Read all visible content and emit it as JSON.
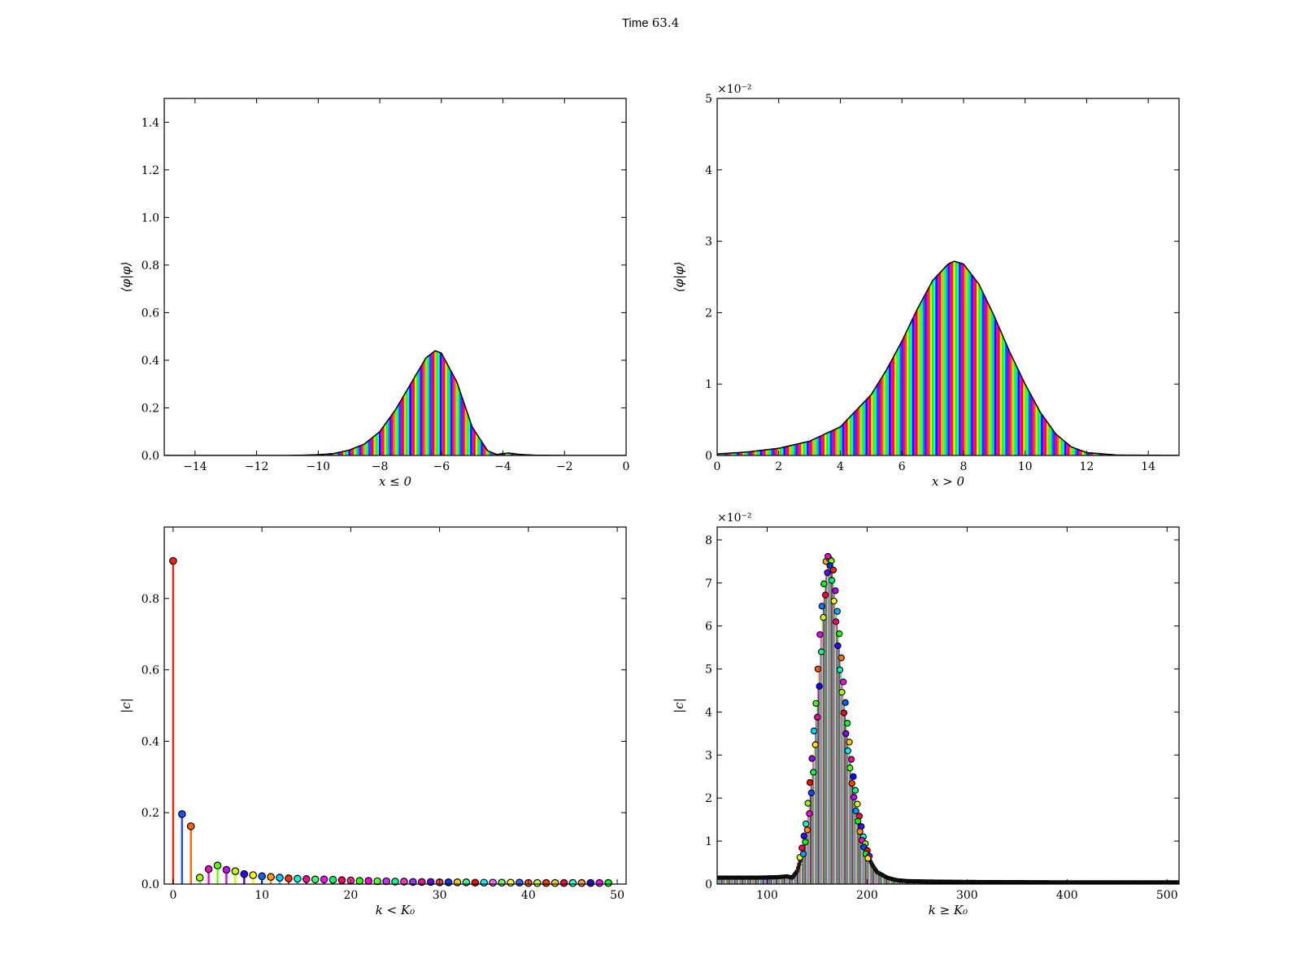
{
  "figure": {
    "title_label": "Time",
    "title_value": "63.4"
  },
  "chart_data": [
    {
      "id": "top-left",
      "type": "area",
      "fill_style": "phase-rainbow",
      "ylabel": "⟨φ|φ⟩",
      "xlabel": "x ≤ 0",
      "xlim": [
        -15,
        0
      ],
      "ylim": [
        0,
        1.5
      ],
      "xticks": [
        -14,
        -12,
        -10,
        -8,
        -6,
        -4,
        -2,
        0
      ],
      "xtick_labels": [
        "−14",
        "−12",
        "−10",
        "−8",
        "−6",
        "−4",
        "−2",
        "0"
      ],
      "yticks": [
        0,
        0.2,
        0.4,
        0.6,
        0.8,
        1.0,
        1.2,
        1.4
      ],
      "ytick_labels": [
        "0.0",
        "0.2",
        "0.4",
        "0.6",
        "0.8",
        "1.0",
        "1.2",
        "1.4"
      ],
      "x": [
        -15,
        -11,
        -10.5,
        -10,
        -9.5,
        -9,
        -8.5,
        -8,
        -7.5,
        -7,
        -6.5,
        -6.2,
        -6,
        -5.5,
        -5,
        -4.5,
        -4.2,
        -4,
        -3.8,
        -3.5,
        -3,
        -2,
        0
      ],
      "y": [
        0,
        0,
        0.001,
        0.003,
        0.008,
        0.022,
        0.048,
        0.1,
        0.19,
        0.3,
        0.41,
        0.44,
        0.43,
        0.31,
        0.12,
        0.02,
        0.004,
        0.008,
        0.01,
        0.005,
        0.001,
        0,
        0
      ],
      "stripe_period": 0.33,
      "grid": false
    },
    {
      "id": "top-right",
      "type": "area",
      "fill_style": "phase-rainbow",
      "ylabel": "⟨φ|φ⟩",
      "xlabel": "x > 0",
      "scale_exponent": "×10⁻²",
      "xlim": [
        0,
        15
      ],
      "ylim": [
        0,
        5
      ],
      "xticks": [
        0,
        2,
        4,
        6,
        8,
        10,
        12,
        14
      ],
      "xtick_labels": [
        "0",
        "2",
        "4",
        "6",
        "8",
        "10",
        "12",
        "14"
      ],
      "yticks": [
        0,
        1,
        2,
        3,
        4,
        5
      ],
      "ytick_labels": [
        "0",
        "1",
        "2",
        "3",
        "4",
        "5"
      ],
      "x": [
        0,
        1,
        2,
        3,
        4,
        5,
        5.5,
        6,
        6.5,
        7,
        7.5,
        7.7,
        8,
        8.5,
        9,
        9.5,
        10,
        10.5,
        11,
        11.5,
        12,
        13,
        15
      ],
      "y": [
        0.02,
        0.05,
        0.1,
        0.2,
        0.4,
        0.85,
        1.2,
        1.6,
        2.05,
        2.45,
        2.68,
        2.72,
        2.68,
        2.4,
        1.95,
        1.45,
        1.0,
        0.6,
        0.3,
        0.12,
        0.04,
        0.005,
        0
      ],
      "stripe_period": 0.38,
      "grid": false
    },
    {
      "id": "bottom-left",
      "type": "scatter",
      "mark_style": "stem",
      "ylabel": "|c|",
      "xlabel": "k < K₀",
      "xlim": [
        -1,
        51
      ],
      "ylim": [
        0,
        1.0
      ],
      "xticks": [
        0,
        10,
        20,
        30,
        40,
        50
      ],
      "xtick_labels": [
        "0",
        "10",
        "20",
        "30",
        "40",
        "50"
      ],
      "yticks": [
        0,
        0.2,
        0.4,
        0.6,
        0.8
      ],
      "ytick_labels": [
        "0.0",
        "0.2",
        "0.4",
        "0.6",
        "0.8"
      ],
      "k": [
        0,
        1,
        2,
        3,
        4,
        5,
        6,
        7,
        8,
        9,
        10,
        11,
        12,
        13,
        14,
        15,
        16,
        17,
        18,
        19,
        20,
        21,
        22,
        23,
        24,
        25,
        26,
        27,
        28,
        29,
        30,
        31,
        32,
        33,
        34,
        35,
        36,
        37,
        38,
        39,
        40,
        41,
        42,
        43,
        44,
        45,
        46,
        47,
        48,
        49
      ],
      "values": [
        0.905,
        0.196,
        0.162,
        0.018,
        0.042,
        0.052,
        0.04,
        0.036,
        0.028,
        0.025,
        0.022,
        0.02,
        0.018,
        0.016,
        0.015,
        0.014,
        0.013,
        0.013,
        0.012,
        0.011,
        0.01,
        0.009,
        0.009,
        0.008,
        0.008,
        0.007,
        0.007,
        0.006,
        0.006,
        0.006,
        0.005,
        0.005,
        0.005,
        0.005,
        0.004,
        0.004,
        0.004,
        0.004,
        0.004,
        0.004,
        0.003,
        0.003,
        0.003,
        0.003,
        0.003,
        0.003,
        0.003,
        0.003,
        0.003,
        0.003
      ],
      "colors": [
        "#ff2200",
        "#1f4fff",
        "#ff6600",
        "#aaff00",
        "#ff00cc",
        "#66ff00",
        "#cc00ff",
        "#ccff00",
        "#3300ff",
        "#ffff00",
        "#0066ff",
        "#ff9900",
        "#00ccff",
        "#ff3300",
        "#00ffcc",
        "#ff0099",
        "#33ff66",
        "#ff00ff",
        "#00ff66",
        "#ff0066",
        "#ff3399",
        "#33ff00",
        "#ff00cc",
        "#66ff33",
        "#cc33ff",
        "#00ff99",
        "#ff33cc",
        "#9933ff",
        "#ff0099",
        "#6600ff",
        "#ff3366",
        "#0033ff",
        "#ffcc00",
        "#33ff99",
        "#ff0000",
        "#00ffff",
        "#ff66ff",
        "#66ff66",
        "#ffff33",
        "#3366ff",
        "#ff6633",
        "#ccff33",
        "#ff3300",
        "#ffcc33",
        "#ff0033",
        "#33ffcc",
        "#ff9933",
        "#3300cc",
        "#ff00ff",
        "#00ff33"
      ],
      "grid": false
    },
    {
      "id": "bottom-right",
      "type": "scatter",
      "mark_style": "stem",
      "ylabel": "|c|",
      "xlabel": "k ≥ K₀",
      "scale_exponent": "×10⁻²",
      "xlim": [
        50,
        512
      ],
      "ylim": [
        0,
        8.3
      ],
      "xticks": [
        100,
        200,
        300,
        400,
        500
      ],
      "xtick_labels": [
        "100",
        "200",
        "300",
        "400",
        "500"
      ],
      "yticks": [
        0,
        1,
        2,
        3,
        4,
        5,
        6,
        7,
        8
      ],
      "ytick_labels": [
        "0",
        "1",
        "2",
        "3",
        "4",
        "5",
        "6",
        "7",
        "8"
      ],
      "k_start": 50,
      "k_end": 512,
      "envelope_k": [
        50,
        90,
        110,
        120,
        125,
        130,
        135,
        140,
        145,
        150,
        155,
        160,
        162,
        165,
        170,
        175,
        180,
        185,
        190,
        195,
        200,
        205,
        210,
        220,
        230,
        240,
        260,
        300,
        400,
        512
      ],
      "envelope_v": [
        0.15,
        0.15,
        0.16,
        0.18,
        0.15,
        0.3,
        0.7,
        1.4,
        2.6,
        4.2,
        6.2,
        7.5,
        7.62,
        7.3,
        6.1,
        4.7,
        3.5,
        2.5,
        1.7,
        1.1,
        0.7,
        0.45,
        0.28,
        0.15,
        0.09,
        0.07,
        0.06,
        0.05,
        0.04,
        0.04
      ],
      "marker_k_range": [
        128,
        215
      ],
      "grid": false
    }
  ]
}
